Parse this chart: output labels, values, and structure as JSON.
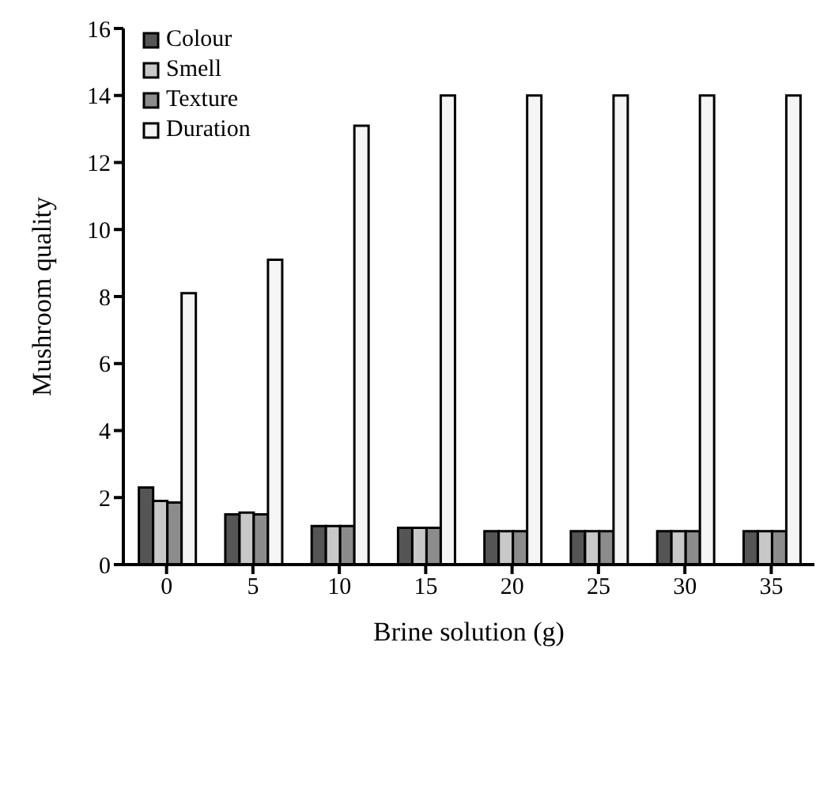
{
  "chart_data": {
    "type": "bar",
    "xlabel": "Brine solution (g)",
    "ylabel": "Mushroom quality",
    "categories": [
      "0",
      "5",
      "10",
      "15",
      "20",
      "25",
      "30",
      "35"
    ],
    "series": [
      {
        "name": "Colour",
        "color": "#555555",
        "values": [
          2.3,
          1.5,
          1.15,
          1.1,
          1.0,
          1.0,
          1.0,
          1.0
        ]
      },
      {
        "name": "Smell",
        "color": "#c8c8c8",
        "values": [
          1.9,
          1.55,
          1.15,
          1.1,
          1.0,
          1.0,
          1.0,
          1.0
        ]
      },
      {
        "name": "Texture",
        "color": "#8c8c8c",
        "values": [
          1.85,
          1.5,
          1.15,
          1.1,
          1.0,
          1.0,
          1.0,
          1.0
        ]
      },
      {
        "name": "Duration",
        "color": "#f5f5f5",
        "values": [
          8.1,
          9.1,
          13.1,
          14,
          14,
          14,
          14,
          14
        ]
      }
    ],
    "ylim": [
      0,
      16
    ],
    "yticks": [
      0,
      2,
      4,
      6,
      8,
      10,
      12,
      14,
      16
    ],
    "grid": false,
    "legend": "top left"
  }
}
